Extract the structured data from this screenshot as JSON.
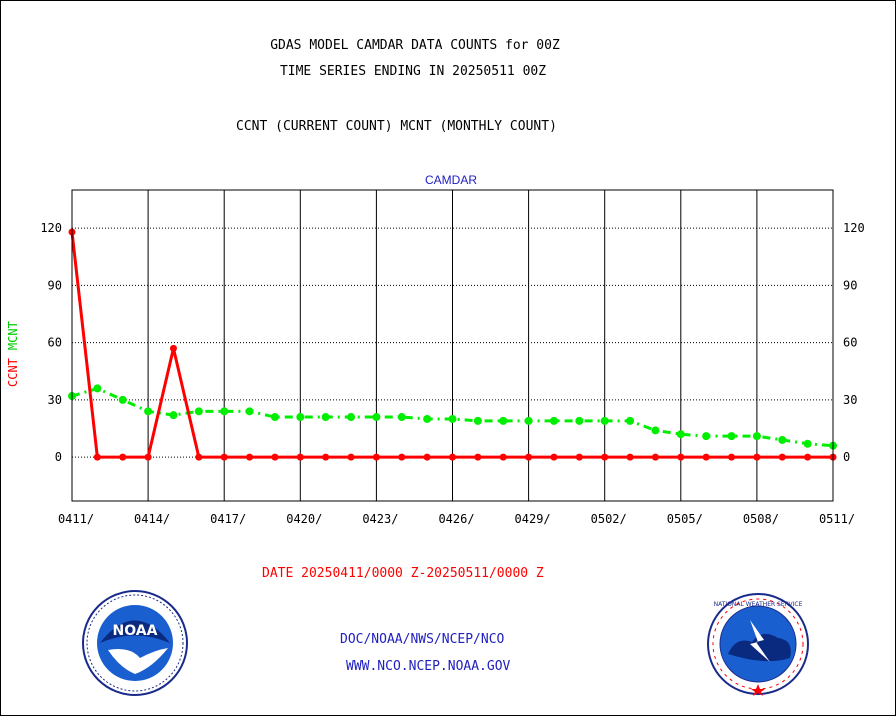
{
  "header": {
    "title_line1": "GDAS MODEL CAMDAR DATA COUNTS for 00Z",
    "title_line2": "TIME SERIES ENDING IN 20250511 00Z",
    "subtitle": "CCNT (CURRENT COUNT) MCNT (MONTHLY COUNT)"
  },
  "y_axis_label": {
    "ccnt": "CCNT",
    "mcnt": "MCNT"
  },
  "footer": {
    "date_range": "DATE 20250411/0000 Z-20250511/0000 Z",
    "credit_line1": "DOC/NOAA/NWS/NCEP/NCO",
    "credit_line2": "WWW.NCO.NCEP.NOAA.GOV"
  },
  "logos": {
    "left": "NOAA",
    "right": "NATIONAL WEATHER SERVICE"
  },
  "colors": {
    "ccnt": "#ff0000",
    "mcnt": "#00ee00",
    "plot_title": "#2020c0",
    "credits": "#2020c0"
  },
  "chart_data": {
    "type": "line",
    "title": "CAMDAR",
    "xlabel": "",
    "ylabel": "CCNT  MCNT",
    "ylim": [
      -23,
      140
    ],
    "xlim": [
      0,
      30
    ],
    "yticks": [
      0,
      30,
      60,
      90,
      120
    ],
    "xtick_labels": [
      "0411/",
      "0414/",
      "0417/",
      "0420/",
      "0423/",
      "0426/",
      "0429/",
      "0502/",
      "0505/",
      "0508/",
      "0511/"
    ],
    "xtick_positions": [
      0,
      3,
      6,
      9,
      12,
      15,
      18,
      21,
      24,
      27,
      30
    ],
    "grid": true,
    "series": [
      {
        "name": "CCNT",
        "color": "#ff0000",
        "x": [
          0,
          1,
          2,
          3,
          4,
          5,
          6,
          7,
          8,
          9,
          10,
          11,
          12,
          13,
          14,
          15,
          16,
          17,
          18,
          19,
          20,
          21,
          22,
          23,
          24,
          25,
          26,
          27,
          28,
          29,
          30
        ],
        "values": [
          118,
          0,
          0,
          0,
          57,
          0,
          0,
          0,
          0,
          0,
          0,
          0,
          0,
          0,
          0,
          0,
          0,
          0,
          0,
          0,
          0,
          0,
          0,
          0,
          0,
          0,
          0,
          0,
          0,
          0,
          0
        ]
      },
      {
        "name": "MCNT",
        "color": "#00ee00",
        "x": [
          0,
          1,
          2,
          3,
          4,
          5,
          6,
          7,
          8,
          9,
          10,
          11,
          12,
          13,
          14,
          15,
          16,
          17,
          18,
          19,
          20,
          21,
          22,
          23,
          24,
          25,
          26,
          27,
          28,
          29,
          30
        ],
        "values": [
          32,
          36,
          30,
          24,
          22,
          24,
          24,
          24,
          21,
          21,
          21,
          21,
          21,
          21,
          20,
          20,
          19,
          19,
          19,
          19,
          19,
          19,
          19,
          14,
          12,
          11,
          11,
          11,
          9,
          7,
          6
        ]
      }
    ]
  }
}
